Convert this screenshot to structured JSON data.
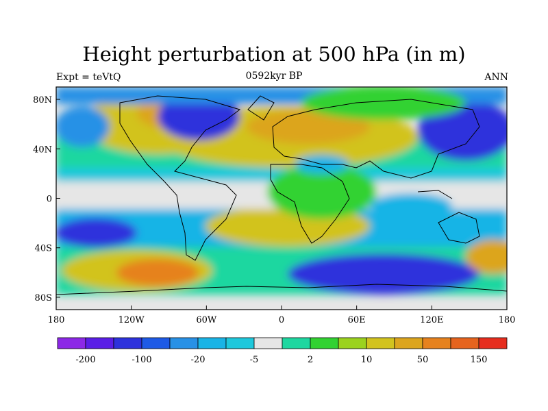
{
  "figure": {
    "title": "Height perturbation at 500 hPa (in m)",
    "subtitle": "0592kyr BP",
    "left_label": "Expt = teVtQ",
    "right_label": "ANN"
  },
  "chart_data": {
    "type": "heatmap",
    "variable": "500 hPa height perturbation",
    "units": "m",
    "x_range": [
      -180,
      180
    ],
    "y_range": [
      -90,
      90
    ],
    "x_ticks": [
      "180",
      "120W",
      "60W",
      "0",
      "60E",
      "120E",
      "180"
    ],
    "x_tick_values": [
      -180,
      -120,
      -60,
      0,
      60,
      120,
      180
    ],
    "y_ticks": [
      "80N",
      "40N",
      "0",
      "40S",
      "80S"
    ],
    "y_tick_values": [
      80,
      40,
      0,
      -40,
      -80
    ],
    "colorbar": {
      "labels": [
        "-200",
        "-100",
        "-20",
        "-5",
        "2",
        "10",
        "50",
        "150"
      ],
      "colors": [
        "#8c28e6",
        "#5a1ee6",
        "#2d32dc",
        "#1e5ae6",
        "#2891e6",
        "#19b4e6",
        "#1ec8dc",
        "#e6e6e6",
        "#1ed7a0",
        "#32d232",
        "#9bd21e",
        "#d2c31e",
        "#dca51e",
        "#e6821e",
        "#e6641e",
        "#e62d1e"
      ]
    }
  }
}
